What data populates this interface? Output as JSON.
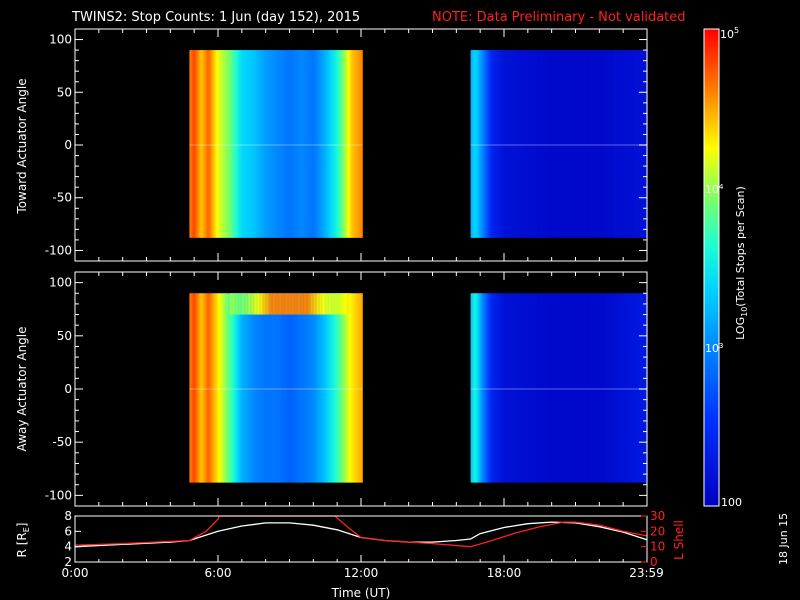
{
  "title": {
    "main": "TWINS2: Stop Counts:  1 Jun (day 152), 2015",
    "note": "NOTE: Data Preliminary - Not validated"
  },
  "date_stamp": "18 Jun 15",
  "colors": {
    "background": "#000000",
    "axis": "#ffffff",
    "note": "#ff2020",
    "r_line": "#ffffff",
    "lshell_line": "#ff2020"
  },
  "chart_data": [
    {
      "type": "heatmap",
      "panel": "toward",
      "ylabel": "Toward Actuator Angle",
      "xlim": [
        0,
        24
      ],
      "ylim": [
        -110,
        110
      ],
      "yticks": [
        100,
        50,
        0,
        -50,
        -100
      ],
      "angle_range": [
        -88,
        90
      ],
      "scale": "log",
      "colorbar_range": [
        100,
        100000
      ],
      "data_intervals_hours": [
        [
          4.8,
          12.05
        ],
        [
          16.6,
          24
        ]
      ],
      "profile_log10_by_hour": [
        [
          4.8,
          4.6
        ],
        [
          5.0,
          4.8
        ],
        [
          5.3,
          4.4
        ],
        [
          5.6,
          4.7
        ],
        [
          6.0,
          4.2
        ],
        [
          6.5,
          3.9
        ],
        [
          7.0,
          3.4
        ],
        [
          7.5,
          3.3
        ],
        [
          8.0,
          3.1
        ],
        [
          8.5,
          3.0
        ],
        [
          9.0,
          2.9
        ],
        [
          9.5,
          3.0
        ],
        [
          10.0,
          2.9
        ],
        [
          10.5,
          3.2
        ],
        [
          11.0,
          3.6
        ],
        [
          11.3,
          4.0
        ],
        [
          11.6,
          4.4
        ],
        [
          12.05,
          4.6
        ],
        [
          16.6,
          3.2
        ],
        [
          16.8,
          3.4
        ],
        [
          17.1,
          3.0
        ],
        [
          17.5,
          2.4
        ],
        [
          18.0,
          2.2
        ],
        [
          20.0,
          2.1
        ],
        [
          22.0,
          2.1
        ],
        [
          24.0,
          2.2
        ]
      ]
    },
    {
      "type": "heatmap",
      "panel": "away",
      "ylabel": "Away Actuator Angle",
      "xlim": [
        0,
        24
      ],
      "ylim": [
        -110,
        110
      ],
      "yticks": [
        100,
        50,
        0,
        -50,
        -100
      ],
      "angle_range": [
        -88,
        90
      ],
      "scale": "log",
      "colorbar_range": [
        100,
        100000
      ],
      "data_intervals_hours": [
        [
          4.8,
          12.05
        ],
        [
          16.6,
          24
        ]
      ],
      "profile_log10_by_hour": [
        [
          4.8,
          4.6
        ],
        [
          5.0,
          4.8
        ],
        [
          5.3,
          4.4
        ],
        [
          5.6,
          4.7
        ],
        [
          6.0,
          4.3
        ],
        [
          6.5,
          3.8
        ],
        [
          7.0,
          3.2
        ],
        [
          7.5,
          3.0
        ],
        [
          8.0,
          2.9
        ],
        [
          8.5,
          2.9
        ],
        [
          9.0,
          2.8
        ],
        [
          9.5,
          2.9
        ],
        [
          10.0,
          3.0
        ],
        [
          10.5,
          3.3
        ],
        [
          11.0,
          3.7
        ],
        [
          11.3,
          4.0
        ],
        [
          11.6,
          4.3
        ],
        [
          12.05,
          4.5
        ],
        [
          16.6,
          3.3
        ],
        [
          16.8,
          3.6
        ],
        [
          17.1,
          3.0
        ],
        [
          17.5,
          2.4
        ],
        [
          18.0,
          2.2
        ],
        [
          20.0,
          2.1
        ],
        [
          22.0,
          2.1
        ],
        [
          24.0,
          2.3
        ]
      ],
      "high_angle_band": {
        "hours": [
          6.5,
          11.5
        ],
        "angle": [
          70,
          90
        ],
        "log10": 4.6
      }
    },
    {
      "type": "line",
      "panel": "orbit",
      "xlabel": "Time (UT)",
      "ylabel": "R [R",
      "ylabel_sub": "E",
      "ylabel_end": "]",
      "y2label": "L Shell",
      "xlim": [
        0,
        24
      ],
      "ylim": [
        2,
        8
      ],
      "y2lim": [
        0,
        30
      ],
      "xtick_labels": [
        "0:00",
        "6:00",
        "12:00",
        "18:00",
        "23:59"
      ],
      "xticks": [
        0,
        6,
        12,
        18,
        23.98
      ],
      "yticks": [
        2,
        4,
        6,
        8
      ],
      "y2ticks": [
        0,
        10,
        20,
        30
      ],
      "series": [
        {
          "name": "R",
          "axis": "left",
          "x": [
            0,
            2,
            4,
            4.8,
            6,
            7,
            8,
            9,
            10,
            11,
            12,
            13,
            14,
            15,
            16,
            16.6,
            17,
            18,
            19,
            20,
            21,
            22,
            23,
            24
          ],
          "y": [
            4.0,
            4.3,
            4.6,
            4.8,
            6.0,
            6.7,
            7.1,
            7.1,
            6.8,
            6.2,
            5.2,
            4.8,
            4.6,
            4.6,
            4.8,
            5.0,
            5.7,
            6.5,
            7.0,
            7.2,
            7.1,
            6.6,
            5.9,
            4.9
          ]
        },
        {
          "name": "L Shell",
          "axis": "right",
          "x": [
            0,
            2,
            4.8,
            5.5,
            6.0,
            6.05,
            10.9,
            11.5,
            12,
            13,
            15,
            16.6,
            17.5,
            18.5,
            19.5,
            20.5,
            21,
            22,
            23,
            24
          ],
          "y": [
            11,
            12,
            14,
            20,
            28,
            30,
            30,
            22,
            16,
            14,
            12,
            10,
            14,
            19,
            23,
            26,
            26,
            24,
            20,
            17
          ]
        }
      ]
    }
  ],
  "colorbar": {
    "label_prefix": "LOG",
    "label_sub": "10",
    "label_suffix": "(Total Stops per Scan)",
    "tick_base": "10",
    "tick_top_exp": "5",
    "tick_mid_exp": "4",
    "tick_low_exp": "3",
    "tick_bottom": "100"
  }
}
